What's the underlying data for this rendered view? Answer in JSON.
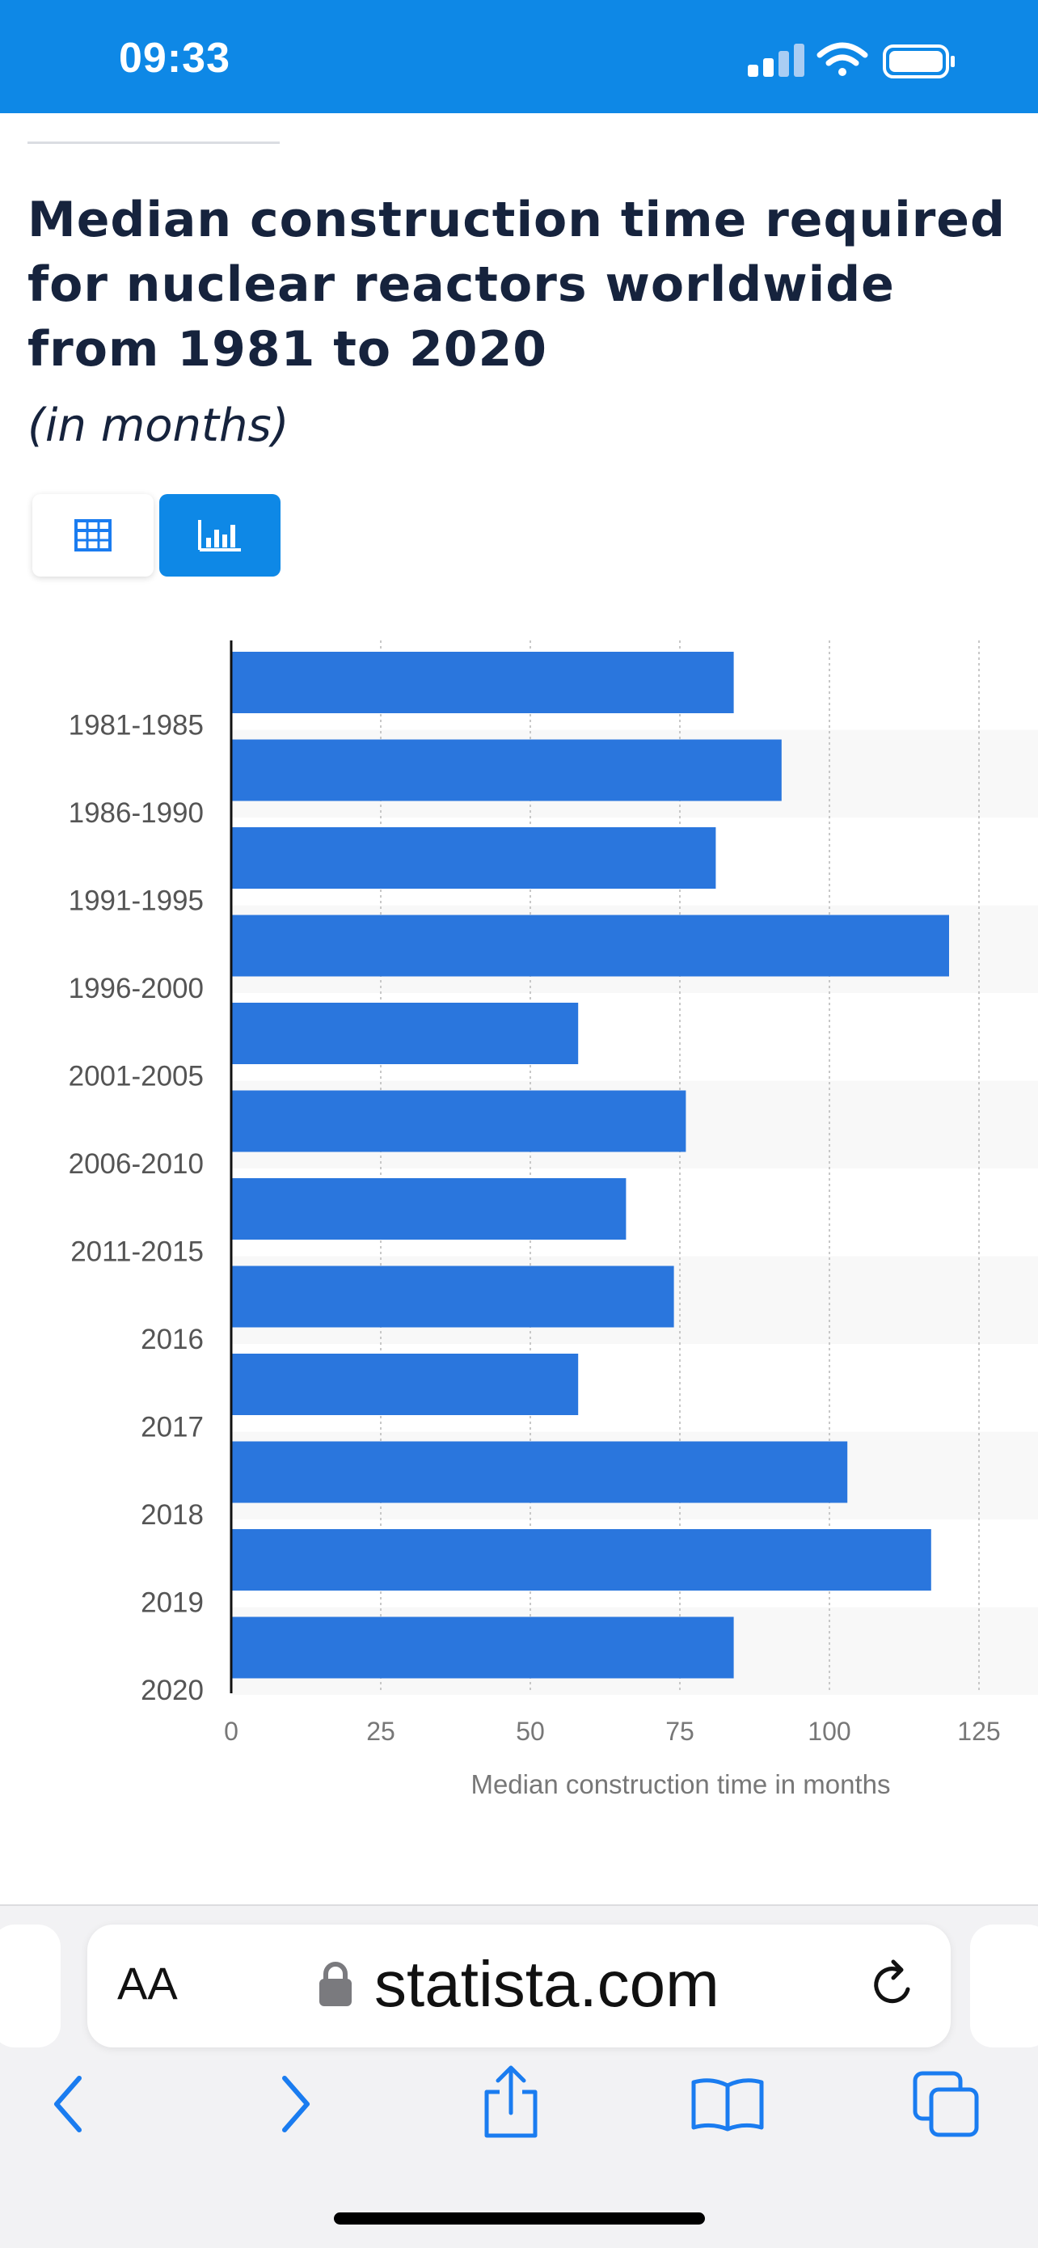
{
  "status_bar": {
    "time": "09:33",
    "icons": [
      "cellular-signal-icon",
      "wifi-icon",
      "battery-icon"
    ],
    "color": "#0e88e6"
  },
  "chart_header": {
    "title": "Median construction time required for nuclear reactors worldwide from 1981 to 2020",
    "subtitle": "(in months)"
  },
  "view_toggle": {
    "options": [
      {
        "name": "table-view",
        "icon": "table-icon",
        "selected": false
      },
      {
        "name": "chart-view",
        "icon": "bar-chart-icon",
        "selected": true
      }
    ]
  },
  "chart_data": {
    "type": "bar",
    "orientation": "horizontal",
    "categories": [
      "1981-1985",
      "1986-1990",
      "1991-1995",
      "1996-2000",
      "2001-2005",
      "2006-2010",
      "2011-2015",
      "2016",
      "2017",
      "2018",
      "2019",
      "2020"
    ],
    "values": [
      84,
      92,
      81,
      120,
      58,
      76,
      66,
      74,
      58,
      103,
      117,
      84
    ],
    "xlabel": "Median construction time in months",
    "ylabel": "",
    "xlim": [
      0,
      135
    ],
    "xticks": [
      0,
      25,
      50,
      75,
      100,
      125
    ],
    "grid": true,
    "bar_color": "#2a76dd"
  },
  "browser": {
    "text_size_label": "AA",
    "domain": "statista.com",
    "icons": [
      "lock-icon",
      "reload-icon",
      "back-icon",
      "forward-icon",
      "share-icon",
      "bookmarks-icon",
      "tabs-icon"
    ],
    "accent": "#1a7cf0"
  }
}
